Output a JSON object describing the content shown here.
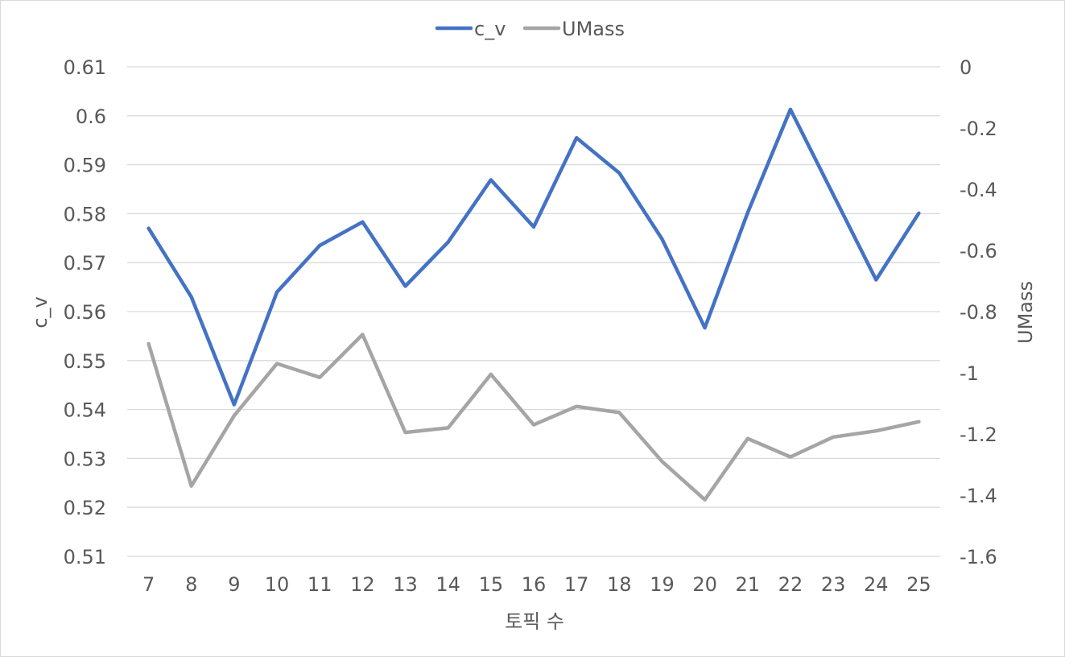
{
  "chart_data": {
    "type": "line",
    "xlabel": "토픽 수",
    "categories": [
      "7",
      "8",
      "9",
      "10",
      "11",
      "12",
      "13",
      "14",
      "15",
      "16",
      "17",
      "18",
      "19",
      "20",
      "21",
      "22",
      "23",
      "24",
      "25"
    ],
    "series": [
      {
        "name": "c_v",
        "axis": "left",
        "color": "#4472c4",
        "values": [
          0.577,
          0.563,
          0.541,
          0.564,
          0.5735,
          0.5783,
          0.5652,
          0.5742,
          0.5869,
          0.5773,
          0.5955,
          0.5883,
          0.5748,
          0.5567,
          0.5802,
          0.6013,
          0.5839,
          0.5665,
          0.5801
        ]
      },
      {
        "name": "UMass",
        "axis": "right",
        "color": "#a5a5a5",
        "values": [
          -0.905,
          -1.37,
          -1.14,
          -0.97,
          -1.015,
          -0.875,
          -1.195,
          -1.18,
          -1.005,
          -1.17,
          -1.11,
          -1.13,
          -1.29,
          -1.415,
          -1.215,
          -1.275,
          -1.21,
          -1.19,
          -1.16
        ]
      }
    ],
    "y_left": {
      "label": "c_v",
      "min": 0.51,
      "max": 0.61,
      "ticks": [
        "0.61",
        "0.6",
        "0.59",
        "0.58",
        "0.57",
        "0.56",
        "0.55",
        "0.54",
        "0.53",
        "0.52",
        "0.51"
      ]
    },
    "y_right": {
      "label": "UMass",
      "min": -1.6,
      "max": 0,
      "ticks": [
        "0",
        "-0.2",
        "-0.4",
        "-0.6",
        "-0.8",
        "-1",
        "-1.2",
        "-1.4",
        "-1.6"
      ]
    },
    "grid": true,
    "legend_position": "top-center",
    "colors": {
      "grid": "#d9d9d9",
      "text": "#595959"
    }
  }
}
